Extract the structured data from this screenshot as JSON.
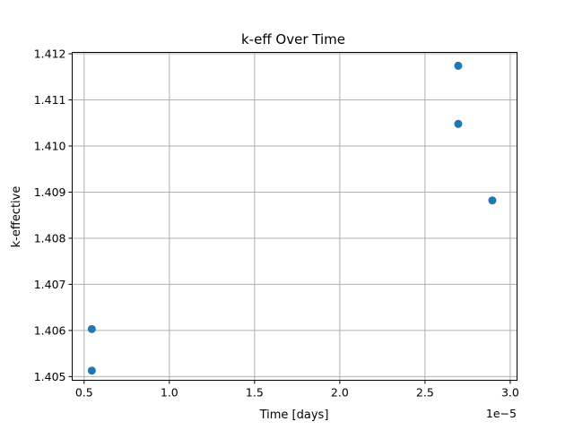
{
  "chart_data": {
    "type": "scatter",
    "title": "k-eff Over Time",
    "xlabel": "Time [days]",
    "ylabel": "k-effective",
    "x_offset_label": "1e−5",
    "x_scale": 1e-05,
    "xlim": [
      0.43,
      3.04
    ],
    "ylim": [
      1.40492,
      1.41203
    ],
    "xticks": [
      0.5,
      1.0,
      1.5,
      2.0,
      2.5,
      3.0
    ],
    "xtick_labels": [
      "0.5",
      "1.0",
      "1.5",
      "2.0",
      "2.5",
      "3.0"
    ],
    "yticks": [
      1.405,
      1.406,
      1.407,
      1.408,
      1.409,
      1.41,
      1.411,
      1.412
    ],
    "ytick_labels": [
      "1.405",
      "1.406",
      "1.407",
      "1.408",
      "1.409",
      "1.410",
      "1.411",
      "1.412"
    ],
    "grid": true,
    "marker_color": "#1f77b4",
    "points": [
      {
        "x": 0.545,
        "y": 1.40513
      },
      {
        "x": 0.545,
        "y": 1.40603
      },
      {
        "x": 2.695,
        "y": 1.41048
      },
      {
        "x": 2.695,
        "y": 1.41174
      },
      {
        "x": 2.895,
        "y": 1.40882
      }
    ]
  }
}
